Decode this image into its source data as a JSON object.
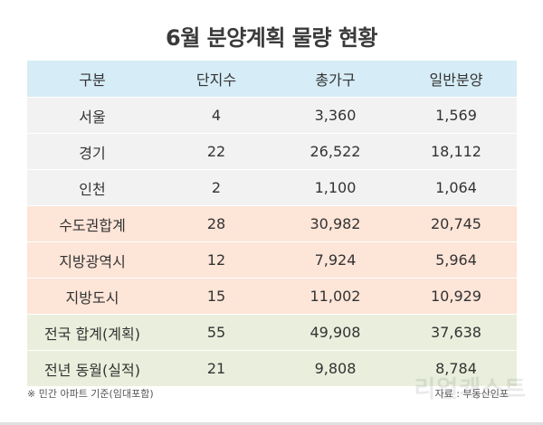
{
  "title": "6월 분양계획 물량 현황",
  "table": {
    "headers": [
      "구분",
      "단지수",
      "총가구",
      "일반분양"
    ],
    "rows": [
      {
        "group": "gray",
        "cells": [
          "서울",
          "4",
          "3,360",
          "1,569"
        ]
      },
      {
        "group": "gray",
        "cells": [
          "경기",
          "22",
          "26,522",
          "18,112"
        ]
      },
      {
        "group": "gray",
        "cells": [
          "인천",
          "2",
          "1,100",
          "1,064"
        ]
      },
      {
        "group": "pink",
        "cells": [
          "수도권합계",
          "28",
          "30,982",
          "20,745"
        ]
      },
      {
        "group": "pink",
        "cells": [
          "지방광역시",
          "12",
          "7,924",
          "5,964"
        ]
      },
      {
        "group": "pink",
        "cells": [
          "지방도시",
          "15",
          "11,002",
          "10,929"
        ]
      },
      {
        "group": "green",
        "cells": [
          "전국 합계(계획)",
          "55",
          "49,908",
          "37,638"
        ]
      },
      {
        "group": "green",
        "cells": [
          "전년 동월(실적)",
          "21",
          "9,808",
          "8,784"
        ]
      }
    ]
  },
  "footnote": "※ 민간 아파트 기준(임대포함)",
  "source": "자료 : 부동산인포",
  "watermark": "리얼캐스트",
  "colors": {
    "header_bg": "#d6ecf6",
    "gray_bg": "#f2f2f2",
    "pink_bg": "#fde5d8",
    "green_bg": "#e9efdc"
  }
}
